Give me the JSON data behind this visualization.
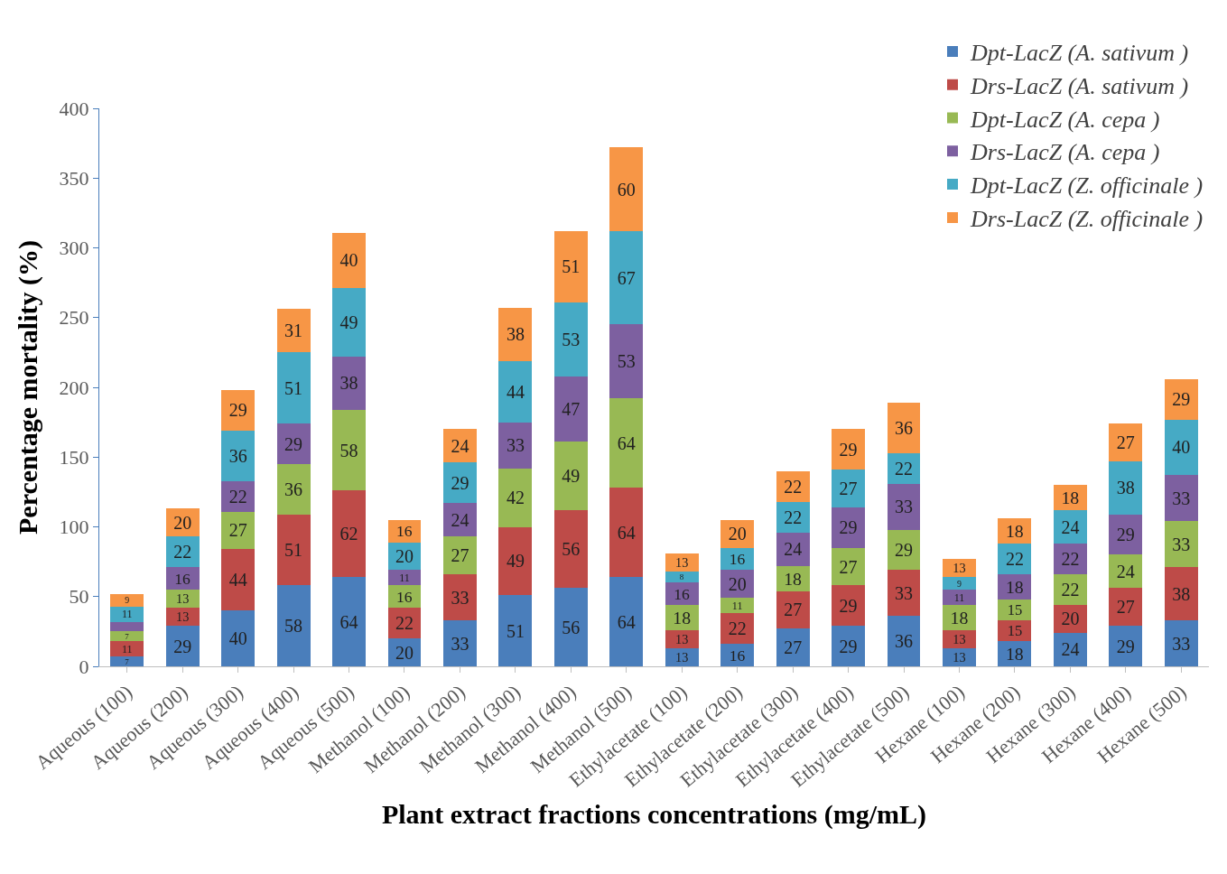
{
  "chart_data": {
    "type": "bar",
    "stacked": true,
    "xlabel": "Plant extract fractions concentrations (mg/mL)",
    "ylabel": "Percentage mortality (%)",
    "categories": [
      "Aqueous (100)",
      "Aqueous (200)",
      "Aqueous (300)",
      "Aqueous (400)",
      "Aqueous (500)",
      "Methanol (100)",
      "Methanol (200)",
      "Methanol (300)",
      "Methanol (400)",
      "Methanol (500)",
      "Ethylacetate (100)",
      "Ethylacetate (200)",
      "Ethylacetate (300)",
      "Ethylacetate (400)",
      "Ethylacetate (500)",
      "Hexane (100)",
      "Hexane (200)",
      "Hexane (300)",
      "Hexane (400)",
      "Hexane (500)"
    ],
    "series": [
      {
        "name": "Dpt-LacZ (A. sativum )",
        "color": "#4a7ebb",
        "values": [
          7,
          29,
          40,
          58,
          64,
          20,
          33,
          51,
          56,
          64,
          13,
          16,
          27,
          29,
          36,
          13,
          18,
          24,
          29,
          33
        ],
        "value_labels": [
          "7",
          "29",
          "40",
          "58",
          "64",
          "20",
          "33",
          "51",
          "56",
          "64",
          "13",
          "16",
          "27",
          "29",
          "36",
          "13",
          "18",
          "24",
          "29",
          "33"
        ]
      },
      {
        "name": "Drs-LacZ (A. sativum )",
        "color": "#be4b48",
        "values": [
          11,
          13,
          44,
          51,
          62,
          22,
          33,
          49,
          56,
          64,
          13,
          22,
          27,
          29,
          33,
          13,
          15,
          20,
          27,
          38
        ],
        "value_labels": [
          "11",
          "13",
          "44",
          "51",
          "62",
          "22",
          "33",
          "49",
          "56",
          "64",
          "13",
          "22",
          "27",
          "29",
          "33",
          "13",
          "15",
          "20",
          "27",
          "38"
        ]
      },
      {
        "name": "Dpt-LacZ (A. cepa )",
        "color": "#98b954",
        "values": [
          7,
          13,
          27,
          36,
          58,
          16,
          27,
          42,
          49,
          64,
          18,
          11,
          18,
          27,
          29,
          18,
          15,
          22,
          24,
          33
        ],
        "value_labels": [
          "7",
          "13",
          "27",
          "36",
          "58",
          "16",
          "27",
          "42",
          "49",
          "64",
          "18",
          "11",
          "18",
          "27",
          "29",
          "18",
          "15",
          "22",
          "24",
          "33"
        ]
      },
      {
        "name": "Drs-LacZ (A. cepa )",
        "color": "#7d60a0",
        "values": [
          7,
          16,
          22,
          29,
          38,
          11,
          24,
          33,
          47,
          53,
          16,
          20,
          24,
          29,
          33,
          11,
          18,
          22,
          29,
          33
        ],
        "value_labels": [
          null,
          "16",
          "22",
          "29",
          "38",
          "11",
          "24",
          "33",
          "47",
          "53",
          "16",
          "20",
          "24",
          "29",
          "33",
          "11",
          "18",
          "22",
          "29",
          "33"
        ]
      },
      {
        "name": "Dpt-LacZ (Z. officinale )",
        "color": "#46aac5",
        "values": [
          11,
          22,
          36,
          51,
          49,
          20,
          29,
          44,
          53,
          67,
          8,
          16,
          22,
          27,
          22,
          9,
          22,
          24,
          38,
          40
        ],
        "value_labels": [
          "11",
          "22",
          "36",
          "51",
          "49",
          "20",
          "29",
          "44",
          "53",
          "67",
          "8",
          "16",
          "22",
          "27",
          "22",
          "9",
          "22",
          "24",
          "38",
          "40"
        ]
      },
      {
        "name": "Drs-LacZ (Z. officinale )",
        "color": "#f79646",
        "values": [
          9,
          20,
          29,
          31,
          40,
          16,
          24,
          38,
          51,
          60,
          13,
          20,
          22,
          29,
          36,
          13,
          18,
          18,
          27,
          29
        ],
        "value_labels": [
          "9",
          "20",
          "29",
          "31",
          "40",
          "16",
          "24",
          "38",
          "51",
          "60",
          "13",
          "20",
          "22",
          "29",
          "36",
          "13",
          "18",
          "18",
          "27",
          "29"
        ]
      }
    ],
    "ylim": [
      0,
      400
    ],
    "yticks": [
      0,
      50,
      100,
      150,
      200,
      250,
      300,
      350,
      400
    ],
    "legend": "top right"
  }
}
